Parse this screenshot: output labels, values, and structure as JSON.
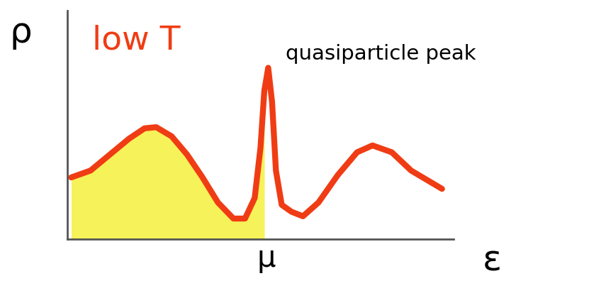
{
  "chart_data": {
    "type": "line",
    "x_label": "ε",
    "y_label": "ρ",
    "annotations": [
      "low T",
      "quasiparticle peak"
    ],
    "x": [
      0.1,
      0.6,
      1.1,
      1.6,
      2.0,
      2.3,
      2.7,
      3.1,
      3.5,
      3.9,
      4.3,
      4.6,
      4.85,
      5.0,
      5.1,
      5.2,
      5.3,
      5.4,
      5.55,
      5.8,
      6.1,
      6.5,
      7.0,
      7.5,
      7.9,
      8.4,
      8.9,
      9.3,
      9.7
    ],
    "values": [
      2.7,
      3.0,
      3.7,
      4.4,
      4.85,
      4.9,
      4.5,
      3.7,
      2.7,
      1.6,
      0.9,
      0.9,
      1.8,
      4.0,
      6.5,
      7.5,
      6.0,
      3.0,
      1.5,
      1.2,
      1.0,
      1.6,
      2.8,
      3.8,
      4.1,
      3.8,
      3.0,
      2.6,
      2.2
    ],
    "color": "#f03c14",
    "xlim": [
      0,
      10
    ],
    "ylim": [
      0,
      10
    ],
    "xticks": [
      {
        "value": 5.15,
        "label": "μ"
      }
    ],
    "yticks": [],
    "tick_labels": "x"
  }
}
